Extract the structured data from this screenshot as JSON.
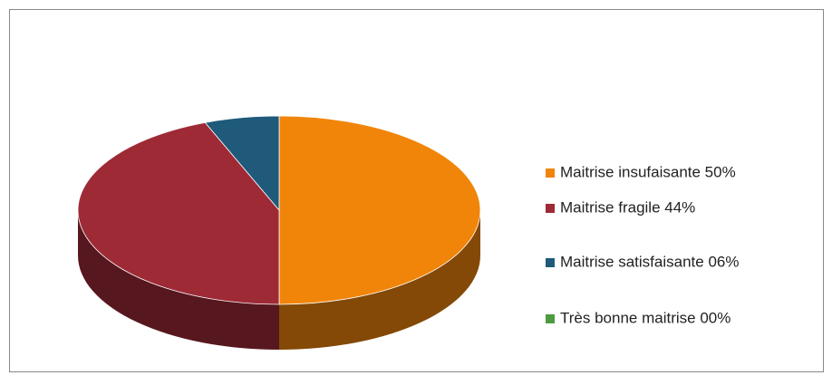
{
  "chart_data": {
    "type": "pie",
    "categories": [
      "Maitrise insufaisante 50%",
      "Maitrise fragile 44%",
      "Maitrise satisfaisante 06%",
      "Très bonne maitrise 00%"
    ],
    "values": [
      50,
      44,
      6,
      0
    ],
    "colors": [
      "#f0850a",
      "#9e2a36",
      "#1f5a7a",
      "#4e9a3f"
    ],
    "legend": "right"
  }
}
